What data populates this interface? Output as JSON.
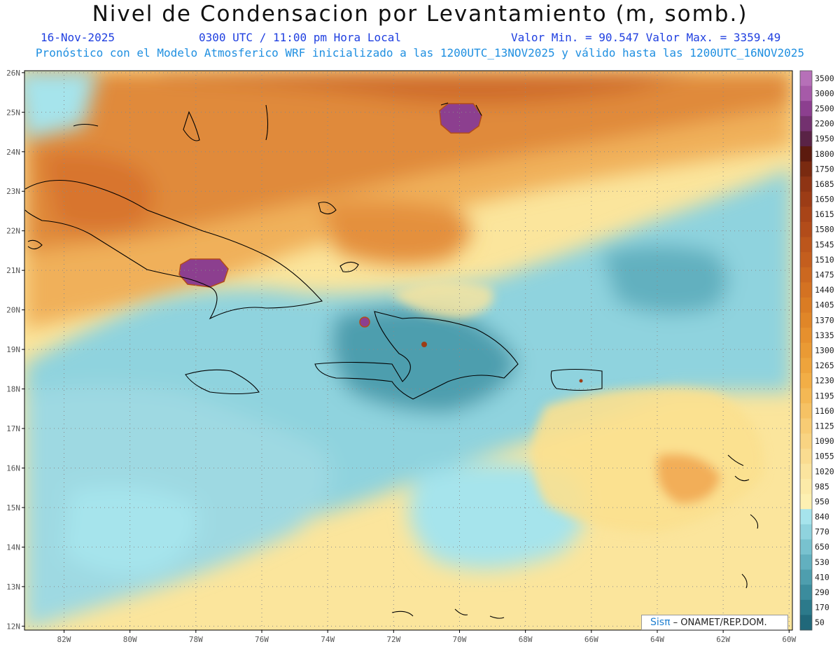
{
  "header": {
    "title": "Nivel de Condensacion por Levantamiento (m, somb.)",
    "date": "16-Nov-2025",
    "time": "0300 UTC / 11:00 pm Hora Local",
    "minmax": "Valor Min. = 90.547  Valor Max. = 3359.49",
    "subtitle": "Pronóstico con el Modelo Atmosferico WRF inicializado a las 1200UTC_13NOV2025 y válido hasta las  1200UTC_16NOV2025"
  },
  "map": {
    "lat_labels": [
      "26N",
      "25N",
      "24N",
      "23N",
      "22N",
      "21N",
      "20N",
      "19N",
      "18N",
      "17N",
      "16N",
      "15N",
      "14N",
      "13N",
      "12N"
    ],
    "lon_labels": [
      "82W",
      "80W",
      "78W",
      "76W",
      "74W",
      "72W",
      "70W",
      "68W",
      "66W",
      "64W",
      "62W",
      "60W"
    ],
    "colors": {
      "frame": "#000000",
      "grid": "#8a8a8a",
      "coast": "#000000"
    }
  },
  "colorbar": {
    "levels": [
      "3500",
      "3000",
      "2500",
      "2200",
      "1950",
      "1800",
      "1750",
      "1685",
      "1650",
      "1615",
      "1580",
      "1545",
      "1510",
      "1475",
      "1440",
      "1405",
      "1370",
      "1335",
      "1300",
      "1265",
      "1230",
      "1195",
      "1160",
      "1125",
      "1090",
      "1055",
      "1020",
      "985",
      "950",
      "840",
      "770",
      "650",
      "530",
      "410",
      "290",
      "170",
      "50"
    ],
    "colors": [
      "#b670b8",
      "#a65aa8",
      "#8c3f8f",
      "#73316f",
      "#5a2346",
      "#5c1a0e",
      "#7a2a10",
      "#8e3414",
      "#9c3c16",
      "#a84418",
      "#b24c1a",
      "#bc561c",
      "#c45e1e",
      "#cc6820",
      "#d47222",
      "#da7c24",
      "#e08628",
      "#e6902e",
      "#ea9a34",
      "#ee a43c",
      "#f2ae46",
      "#f4b854",
      "#f6c264",
      "#f8cc74",
      "#f9d482",
      "#fadc90",
      "#fbe49e",
      "#fceaa8",
      "#fdf0b2",
      "#a6e4ec",
      "#8fd3de",
      "#78c2cf",
      "#62b0bf",
      "#4e9eae",
      "#3b8c9d",
      "#2c7a8b",
      "#20687a"
    ]
  },
  "branding": {
    "sis": "Sisπ",
    "org": "– ONAMET/REP.DOM."
  }
}
